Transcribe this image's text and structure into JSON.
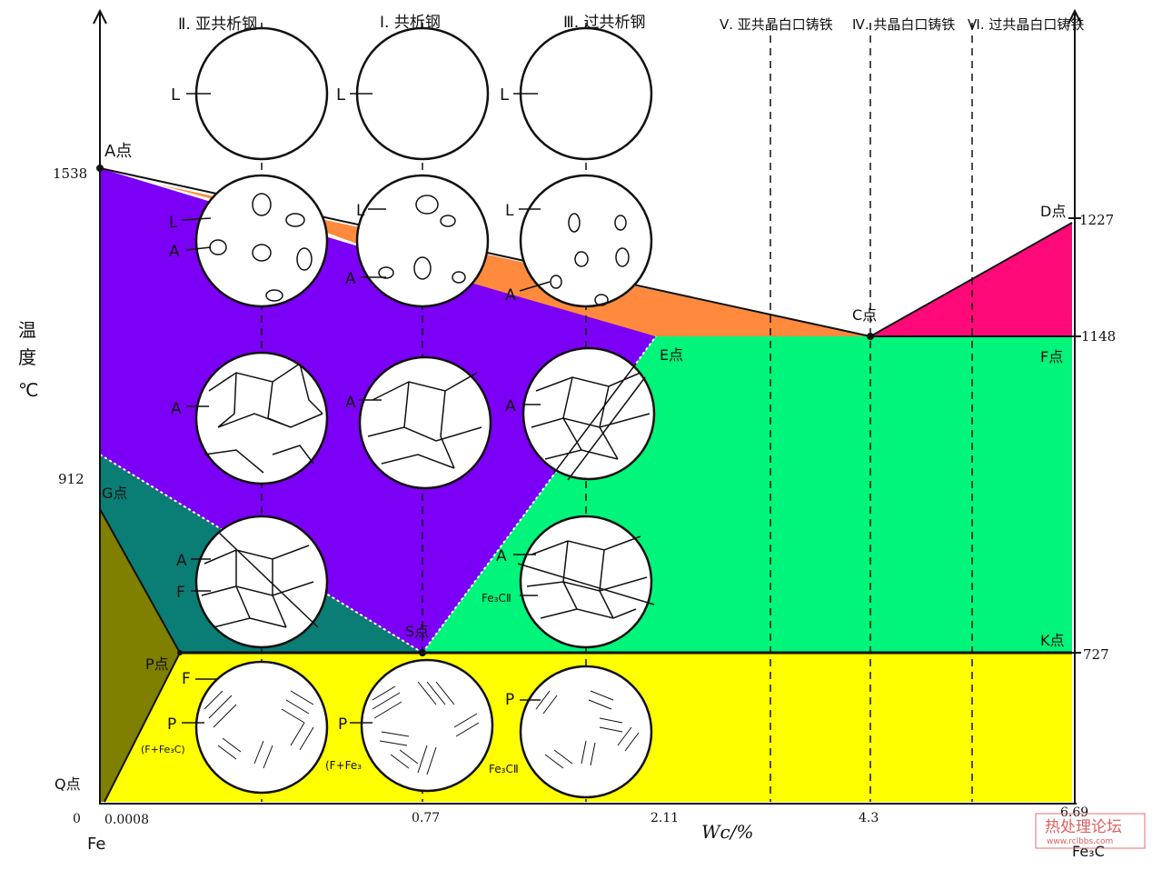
{
  "steels": {
    "hypo": "Ⅱ. 亚共析钢",
    "eutectoid": "Ⅰ. 共析钢",
    "hyper": "Ⅲ. 过共析钢"
  },
  "irons": {
    "hypo": "Ⅴ. 亚共晶白口铸铁",
    "eutectic": "Ⅳ. 共晶白口铸铁",
    "hyper": "Ⅵ. 过共晶白口铸铁"
  },
  "points": {
    "A": "A点",
    "C": "C点",
    "D": "D点",
    "E": "E点",
    "F": "F点",
    "G": "G点",
    "S": "S点",
    "K": "K点",
    "P": "P点",
    "Q": "Q点"
  },
  "temps": {
    "t1538": "1538",
    "t1227": "1227",
    "t1148": "1148",
    "t912": "912",
    "t727": "727"
  },
  "carbon": {
    "c0": "0",
    "c0008": "0.0008",
    "c077": "0.77",
    "c211": "2.11",
    "c43": "4.3",
    "c669": "6.69"
  },
  "axis": {
    "x_label": "Wc/%",
    "y_label_1": "温",
    "y_label_2": "度",
    "y_label_3": "℃",
    "fe": "Fe",
    "fe3c": "Fe₃C"
  },
  "phase": {
    "L": "L",
    "A": "A",
    "F": "F",
    "P": "P",
    "FFe3C": "(F+Fe₃C)",
    "FFe3": "(F+Fe₃",
    "Fe3CII": "Fe₃CⅡ"
  },
  "watermark": {
    "cn": "热处理论坛",
    "url": "www.rclbbs.com"
  },
  "colors": {
    "austenite": "#7b00f5",
    "liquid_plus_a": "#ff8a3d",
    "liquid_plus_fe3c": "#ff0a78",
    "a_plus_fe3c": "#00f57a",
    "a_plus_f": "#0a7d74",
    "ferrite": "#7f7f00",
    "pearlite_region": "#ffff00"
  }
}
